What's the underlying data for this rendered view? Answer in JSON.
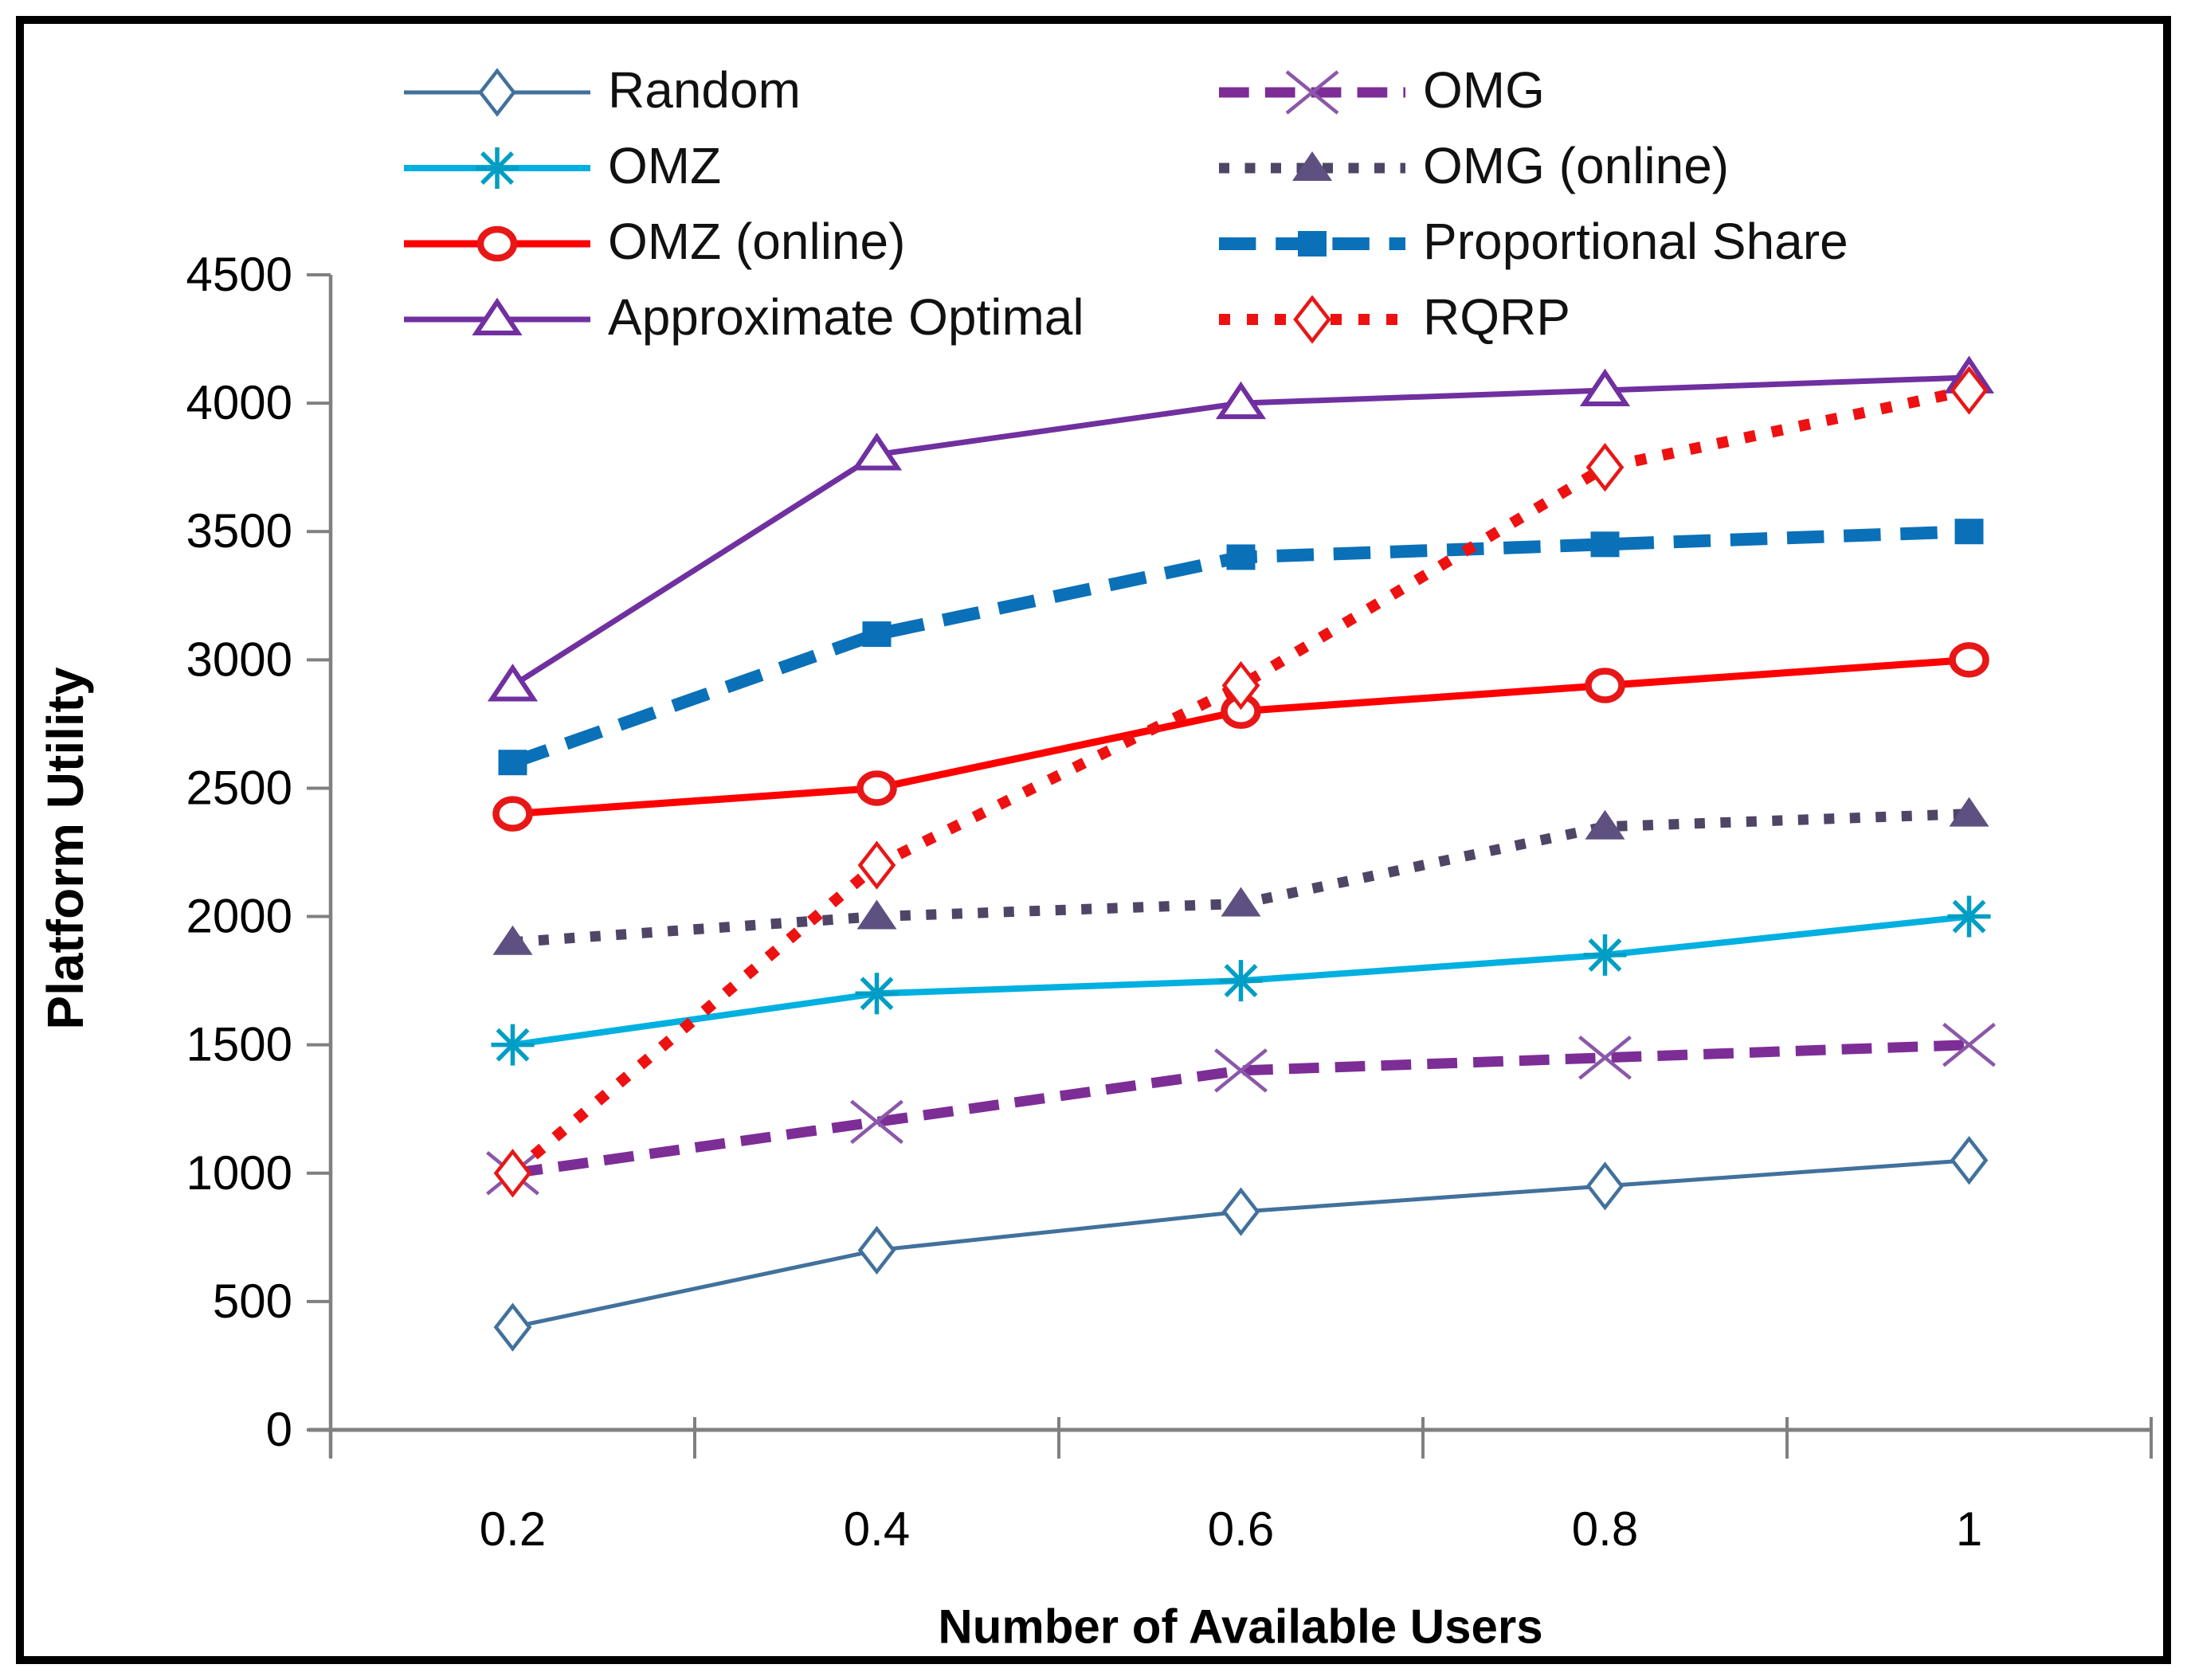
{
  "figure": {
    "background": "#ffffff",
    "border_color": "#000000"
  },
  "chart_data": {
    "type": "line",
    "title": "",
    "xlabel": "Number of Available Users",
    "ylabel": "Platform Utility",
    "x_categories": [
      "0.2",
      "0.4",
      "0.6",
      "0.8",
      "1"
    ],
    "y_ticks": [
      0,
      500,
      1000,
      1500,
      2000,
      2500,
      3000,
      3500,
      4000,
      4500
    ],
    "ylim": [
      0,
      4500
    ],
    "grid": "off",
    "axis_color": "#808080",
    "tick_label_color": "#000000",
    "legend_position": "top",
    "legend_columns": 2,
    "series": [
      {
        "name": "Random",
        "color": "#41719C",
        "marker_color": "#41719C",
        "line": "solid",
        "width": 5,
        "marker": "diamond-open",
        "values": [
          400,
          700,
          850,
          950,
          1050
        ]
      },
      {
        "name": "OMZ",
        "color": "#00B0E0",
        "marker_color": "#009EC4",
        "line": "solid",
        "width": 8,
        "marker": "asterisk",
        "values": [
          1500,
          1700,
          1750,
          1850,
          2000
        ]
      },
      {
        "name": "OMZ (online)",
        "color": "#FE0000",
        "marker_color": "#E81717",
        "line": "solid",
        "width": 9,
        "marker": "circle-open",
        "values": [
          2400,
          2500,
          2800,
          2900,
          3000
        ]
      },
      {
        "name": "Approximate Optimal",
        "color": "#7030A0",
        "marker_color": "#7030A0",
        "line": "solid",
        "width": 7,
        "marker": "triangle-open",
        "values": [
          2900,
          3800,
          4000,
          4050,
          4100
        ]
      },
      {
        "name": "OMG",
        "color": "#7D2D96",
        "marker_color": "#8B57A8",
        "line": "dash",
        "width": 13,
        "marker": "x",
        "values": [
          1000,
          1200,
          1400,
          1450,
          1500
        ]
      },
      {
        "name": "OMG (online)",
        "color": "#4F4566",
        "marker_color": "#5E5080",
        "line": "dot",
        "width": 13,
        "marker": "triangle-filled",
        "values": [
          1900,
          2000,
          2050,
          2350,
          2400
        ]
      },
      {
        "name": "Proportional Share",
        "color": "#0A70B8",
        "marker_color": "#0A70B8",
        "line": "dash",
        "width": 16,
        "marker": "square-filled",
        "values": [
          2600,
          3100,
          3400,
          3450,
          3500
        ]
      },
      {
        "name": "RQRP",
        "color": "#EE1111",
        "marker_color": "#E81717",
        "line": "dot",
        "width": 14,
        "marker": "diamond-open",
        "values": [
          1000,
          2200,
          2900,
          3750,
          4050
        ]
      }
    ]
  }
}
